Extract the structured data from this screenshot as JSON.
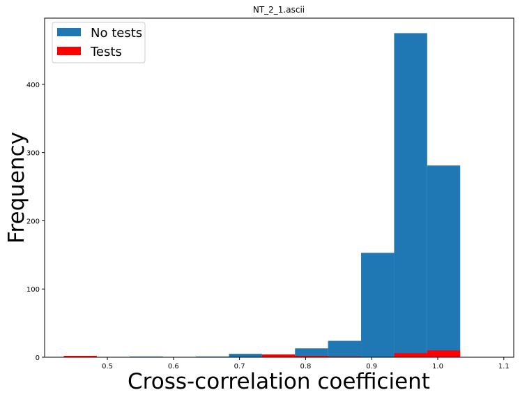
{
  "chart_data": {
    "type": "bar",
    "title": "NT_2_1.ascii",
    "xlabel": "Cross-correlation coefficient",
    "ylabel": "Frequency",
    "xlim": [
      0.405,
      1.115
    ],
    "ylim": [
      0,
      497
    ],
    "xticks": [
      0.5,
      0.6,
      0.7,
      0.8,
      0.9,
      1.0,
      1.1
    ],
    "xtick_labels": [
      "0.5",
      "0.6",
      "0.7",
      "0.8",
      "0.9",
      "1.0",
      "1.1"
    ],
    "yticks": [
      0,
      100,
      200,
      300,
      400
    ],
    "ytick_labels": [
      "0",
      "100",
      "200",
      "300",
      "400"
    ],
    "grid": false,
    "legend_position": "top-left",
    "series": [
      {
        "name": "No tests",
        "color": "#1f77b4",
        "bins": [
          {
            "x0": 0.534,
            "x1": 0.584,
            "value": 1
          },
          {
            "x0": 0.634,
            "x1": 0.684,
            "value": 1
          },
          {
            "x0": 0.684,
            "x1": 0.734,
            "value": 5
          },
          {
            "x0": 0.734,
            "x1": 0.784,
            "value": 4
          },
          {
            "x0": 0.784,
            "x1": 0.834,
            "value": 13
          },
          {
            "x0": 0.834,
            "x1": 0.884,
            "value": 24
          },
          {
            "x0": 0.884,
            "x1": 0.934,
            "value": 153
          },
          {
            "x0": 0.934,
            "x1": 0.984,
            "value": 475
          },
          {
            "x0": 0.984,
            "x1": 1.034,
            "value": 281
          }
        ]
      },
      {
        "name": "Tests",
        "color": "#ff0000",
        "bins": [
          {
            "x0": 0.434,
            "x1": 0.484,
            "value": 2
          },
          {
            "x0": 0.734,
            "x1": 0.784,
            "value": 4
          },
          {
            "x0": 0.784,
            "x1": 0.834,
            "value": 2
          },
          {
            "x0": 0.834,
            "x1": 0.884,
            "value": 1
          },
          {
            "x0": 0.934,
            "x1": 0.984,
            "value": 6
          },
          {
            "x0": 0.984,
            "x1": 1.034,
            "value": 10
          }
        ]
      }
    ]
  }
}
